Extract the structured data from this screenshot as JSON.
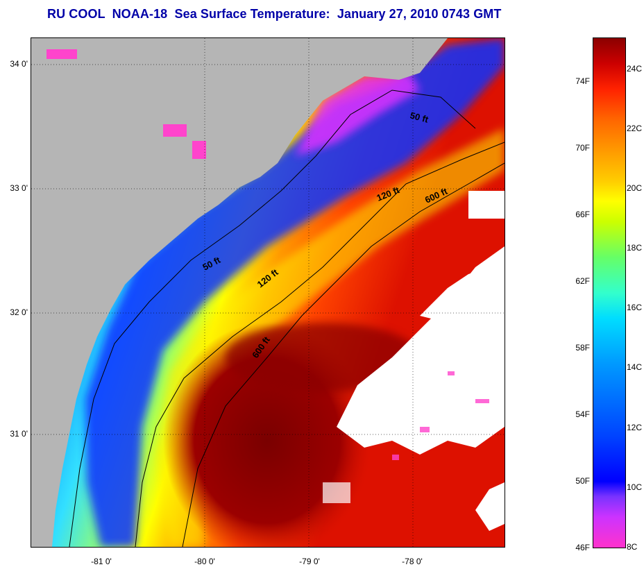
{
  "title": "RU COOL  NOAA-18  Sea Surface Temperature:  January 27, 2010 0743 GMT",
  "map": {
    "lat_labels": [
      "34 0'",
      "33 0'",
      "32 0'",
      "31 0'"
    ],
    "lon_labels": [
      "-81 0'",
      "-80 0'",
      "-79 0'",
      "-78 0'"
    ],
    "contour_labels": [
      "50 ft",
      "50 ft",
      "120 ft",
      "120 ft",
      "600 ft",
      "600 ft"
    ],
    "colors": {
      "land": "#b5b5b5",
      "cloud": "#ffffff",
      "cold": "#ff33cc",
      "warm": "#8b0000"
    }
  },
  "colorbar": {
    "fahrenheit_labels": [
      "74F",
      "70F",
      "66F",
      "62F",
      "58F",
      "54F",
      "50F",
      "46F"
    ],
    "celsius_labels": [
      "24C",
      "22C",
      "20C",
      "18C",
      "16C",
      "14C",
      "12C",
      "10C",
      "8C"
    ]
  }
}
